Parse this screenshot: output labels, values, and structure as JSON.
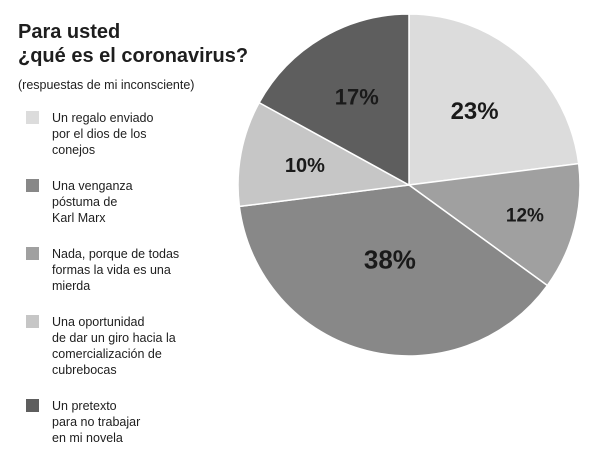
{
  "chart_data": {
    "type": "pie",
    "title": "Para usted\n¿qué es el coronavirus?",
    "subtitle": "(respuestas de mi inconsciente)",
    "slices": [
      {
        "label": "Un regalo enviado\npor el dios de los\nconejos",
        "value": 23,
        "value_label": "23%",
        "color": "#dcdcdc"
      },
      {
        "label": "Nada, porque de todas\nformas la vida es una\nmierda",
        "value": 12,
        "value_label": "12%",
        "color": "#a0a0a0"
      },
      {
        "label": "Una venganza\npóstuma de\nKarl Marx",
        "value": 38,
        "value_label": "38%",
        "color": "#888888"
      },
      {
        "label": "Una oportunidad\nde dar un giro hacia la\ncomercialización de\ncubrebocas",
        "value": 10,
        "value_label": "10%",
        "color": "#c6c6c6"
      },
      {
        "label": "Un pretexto\npara no trabajar\nen mi novela",
        "value": 17,
        "value_label": "17%",
        "color": "#5e5e5e"
      }
    ],
    "legend_order": [
      0,
      2,
      1,
      3,
      4
    ],
    "start_angle_deg": 0,
    "direction": "clockwise"
  }
}
